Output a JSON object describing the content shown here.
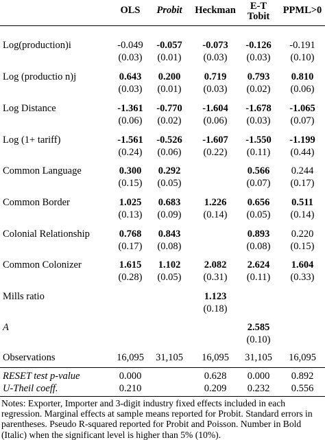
{
  "columns": [
    {
      "label": "OLS",
      "italic": false
    },
    {
      "label": "Probit",
      "italic": true
    },
    {
      "label": "Heckman",
      "italic": false
    },
    {
      "label": "E-T\nTobit",
      "italic": false
    },
    {
      "label": "PPML>0",
      "italic": false
    }
  ],
  "rows": [
    {
      "label": "Log(production)i",
      "coef": [
        {
          "v": "-0.049",
          "b": false
        },
        {
          "v": "-0.057",
          "b": true
        },
        {
          "v": "-0.073",
          "b": true
        },
        {
          "v": "-0.126",
          "b": true
        },
        {
          "v": "-0.191",
          "b": false
        }
      ],
      "se": [
        "(0.03)",
        "(0.01)",
        "(0.03)",
        "(0.03)",
        "(0.10)"
      ]
    },
    {
      "label": "Log (productio n)j",
      "coef": [
        {
          "v": "0.643",
          "b": true
        },
        {
          "v": "0.200",
          "b": true
        },
        {
          "v": "0.719",
          "b": true
        },
        {
          "v": "0.793",
          "b": true
        },
        {
          "v": "0.810",
          "b": true
        }
      ],
      "se": [
        "(0.03)",
        "(0.01)",
        "(0.03)",
        "(0.02)",
        "(0.06)"
      ]
    },
    {
      "label": "Log Distance",
      "coef": [
        {
          "v": "-1.361",
          "b": true
        },
        {
          "v": "-0.770",
          "b": true
        },
        {
          "v": "-1.604",
          "b": true
        },
        {
          "v": "-1.678",
          "b": true
        },
        {
          "v": "-1.065",
          "b": true
        }
      ],
      "se": [
        "(0.06)",
        "(0.02)",
        "(0.06)",
        "(0.03)",
        "(0.07)"
      ]
    },
    {
      "label": "Log (1+ tariff)",
      "coef": [
        {
          "v": "-1.561",
          "b": true
        },
        {
          "v": "-0.526",
          "b": true
        },
        {
          "v": "-1.607",
          "b": true
        },
        {
          "v": "-1.550",
          "b": true
        },
        {
          "v": "-1.199",
          "b": true
        }
      ],
      "se": [
        "(0.24)",
        "(0.06)",
        "(0.22)",
        "(0.11)",
        "(0.44)"
      ]
    },
    {
      "label": "Common Language",
      "coef": [
        {
          "v": "0.300",
          "b": true
        },
        {
          "v": "0.292",
          "b": true
        },
        {
          "v": "",
          "b": false
        },
        {
          "v": "0.566",
          "b": true
        },
        {
          "v": "0.244",
          "b": false
        }
      ],
      "se": [
        "(0.15)",
        "(0.05)",
        "",
        "(0.07)",
        "(0.17)"
      ]
    },
    {
      "label": "Common Border",
      "coef": [
        {
          "v": "1.025",
          "b": true
        },
        {
          "v": "0.683",
          "b": true
        },
        {
          "v": "1.226",
          "b": true
        },
        {
          "v": "0.656",
          "b": true
        },
        {
          "v": "0.511",
          "b": true
        }
      ],
      "se": [
        "(0.13)",
        "(0.09)",
        "(0.14)",
        "(0.05)",
        "(0.14)"
      ]
    },
    {
      "label": "Colonial Relationship",
      "coef": [
        {
          "v": "0.768",
          "b": true
        },
        {
          "v": "0.843",
          "b": true
        },
        {
          "v": "",
          "b": false
        },
        {
          "v": "0.893",
          "b": true
        },
        {
          "v": "0.220",
          "b": false
        }
      ],
      "se": [
        "(0.17)",
        "(0.08)",
        "",
        "(0.08)",
        "(0.15)"
      ]
    },
    {
      "label": "Common Colonizer",
      "coef": [
        {
          "v": "1.615",
          "b": true
        },
        {
          "v": "1.102",
          "b": true
        },
        {
          "v": "2.082",
          "b": true
        },
        {
          "v": "2.624",
          "b": true
        },
        {
          "v": "1.604",
          "b": true
        }
      ],
      "se": [
        "(0.28)",
        "(0.05)",
        "(0.31)",
        "(0.11)",
        "(0.33)"
      ]
    },
    {
      "label": "Mills ratio",
      "coef": [
        {
          "v": "",
          "b": false
        },
        {
          "v": "",
          "b": false
        },
        {
          "v": "1.123",
          "b": true
        },
        {
          "v": "",
          "b": false
        },
        {
          "v": "",
          "b": false
        }
      ],
      "se": [
        "",
        "",
        "(0.18)",
        "",
        ""
      ]
    },
    {
      "label": "A",
      "italic": true,
      "coef": [
        {
          "v": "",
          "b": false
        },
        {
          "v": "",
          "b": false
        },
        {
          "v": "",
          "b": false
        },
        {
          "v": "2.585",
          "b": true
        },
        {
          "v": "",
          "b": false
        }
      ],
      "se": [
        "",
        "",
        "",
        "(0.10)",
        ""
      ]
    }
  ],
  "observations": {
    "label": "Observations",
    "values": [
      "16,095",
      "31,105",
      "16,095",
      "31,105",
      "16,095"
    ]
  },
  "tests": [
    {
      "label": "RESET test p-value",
      "values": [
        "0.000",
        "",
        "0.628",
        "0.000",
        "0.892"
      ]
    },
    {
      "label": "U-Theil coeff.",
      "values": [
        "0.210",
        "",
        "0.209",
        "0.232",
        "0.556"
      ]
    }
  ],
  "notes": [
    "Notes: Exporter, Importer and 3-digit industry fixed effects included in each",
    "regression. Marginal effects at sample means reported for Probit. Standard errors in",
    "parentheses. Pseudo R-squared reported for Probit and Poisson. Number in Bold",
    "(Italic) when the significant level is higher than 5% (10%)."
  ]
}
